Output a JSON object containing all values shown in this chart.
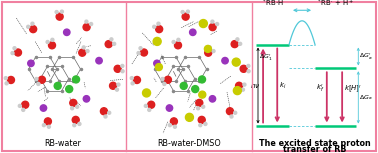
{
  "background_color": "#ffffff",
  "border_color": "#f080a0",
  "panel_labels": [
    "RB-water",
    "RB-water-DMSO",
    "The excited state proton\ntransfer of RB"
  ],
  "label_fontsize": 5.8,
  "diagram": {
    "level_color": "#00c878",
    "arrow_color_red": "#cc3366",
    "arrow_color_cyan": "#50c8d8",
    "dashed_color": "#50c8d8",
    "annotation_fontsize": 5.0
  }
}
